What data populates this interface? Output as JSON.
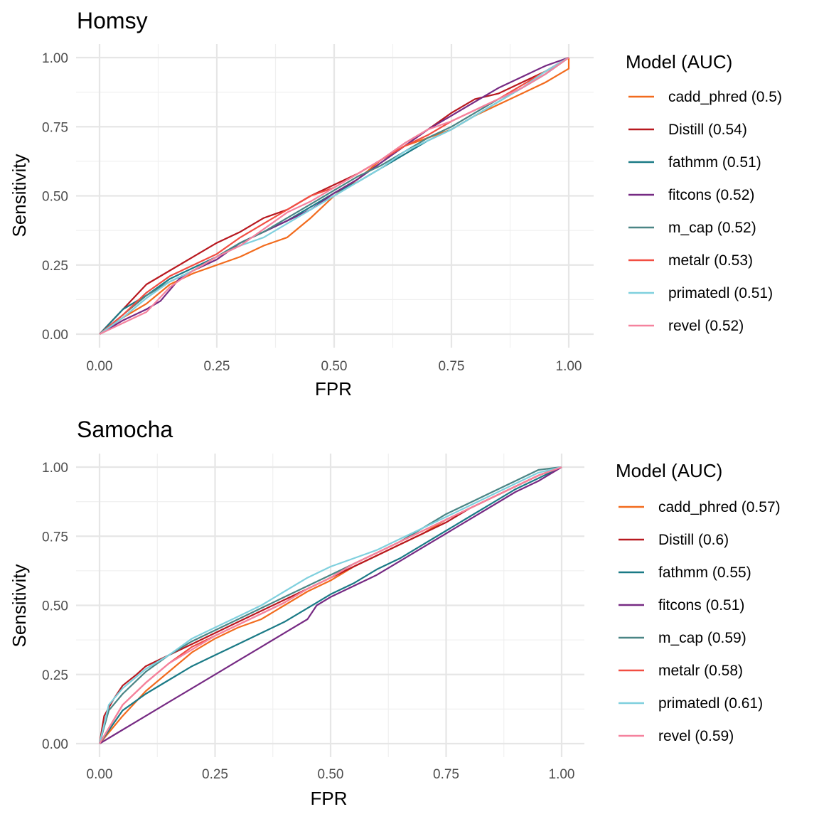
{
  "chart_data": [
    {
      "type": "line",
      "title": "Homsy",
      "xlabel": "FPR",
      "ylabel": "Sensitivity",
      "xlim": [
        0,
        1
      ],
      "ylim": [
        0,
        1
      ],
      "xticks": [
        "0.00",
        "0.25",
        "0.50",
        "0.75",
        "1.00"
      ],
      "yticks": [
        "0.00",
        "0.25",
        "0.50",
        "0.75",
        "1.00"
      ],
      "grid": true,
      "legend": {
        "title": "Model (AUC)",
        "position": "right"
      },
      "series": [
        {
          "name": "cadd_phred (0.5)",
          "color": "#F26B1D",
          "x": [
            0,
            0.05,
            0.1,
            0.15,
            0.2,
            0.3,
            0.35,
            0.4,
            0.45,
            0.5,
            0.55,
            0.6,
            0.65,
            0.7,
            0.75,
            0.8,
            0.85,
            0.9,
            0.95,
            0.98,
            1.0,
            1.0
          ],
          "y": [
            0,
            0.06,
            0.11,
            0.18,
            0.22,
            0.28,
            0.32,
            0.35,
            0.42,
            0.5,
            0.56,
            0.63,
            0.68,
            0.71,
            0.74,
            0.79,
            0.83,
            0.87,
            0.91,
            0.94,
            0.96,
            1.0
          ]
        },
        {
          "name": "Distill (0.54)",
          "color": "#B8181F",
          "x": [
            0,
            0.05,
            0.1,
            0.15,
            0.2,
            0.25,
            0.3,
            0.35,
            0.4,
            0.45,
            0.5,
            0.55,
            0.6,
            0.65,
            0.7,
            0.75,
            0.8,
            0.85,
            0.9,
            0.95,
            1.0
          ],
          "y": [
            0,
            0.09,
            0.18,
            0.23,
            0.28,
            0.33,
            0.37,
            0.42,
            0.45,
            0.5,
            0.54,
            0.58,
            0.63,
            0.69,
            0.74,
            0.8,
            0.85,
            0.87,
            0.91,
            0.95,
            1.0
          ]
        },
        {
          "name": "fathmm (0.51)",
          "color": "#1A7A86",
          "x": [
            0,
            0.05,
            0.1,
            0.15,
            0.2,
            0.25,
            0.3,
            0.35,
            0.4,
            0.45,
            0.5,
            0.55,
            0.6,
            0.65,
            0.7,
            0.75,
            0.8,
            0.85,
            0.9,
            0.95,
            1.0
          ],
          "y": [
            0,
            0.09,
            0.14,
            0.2,
            0.24,
            0.28,
            0.33,
            0.37,
            0.41,
            0.46,
            0.51,
            0.55,
            0.6,
            0.65,
            0.7,
            0.74,
            0.79,
            0.84,
            0.89,
            0.94,
            1.0
          ]
        },
        {
          "name": "fitcons (0.52)",
          "color": "#762A83",
          "x": [
            0,
            0.05,
            0.1,
            0.13,
            0.17,
            0.2,
            0.25,
            0.3,
            0.35,
            0.4,
            0.45,
            0.5,
            0.55,
            0.6,
            0.65,
            0.7,
            0.75,
            0.8,
            0.85,
            0.9,
            0.95,
            1.0
          ],
          "y": [
            0,
            0.05,
            0.09,
            0.12,
            0.2,
            0.23,
            0.27,
            0.33,
            0.37,
            0.41,
            0.45,
            0.51,
            0.56,
            0.62,
            0.68,
            0.74,
            0.79,
            0.84,
            0.89,
            0.93,
            0.97,
            1.0
          ]
        },
        {
          "name": "m_cap (0.52)",
          "color": "#4A8585",
          "x": [
            0,
            0.05,
            0.1,
            0.15,
            0.2,
            0.25,
            0.3,
            0.35,
            0.4,
            0.45,
            0.5,
            0.55,
            0.6,
            0.65,
            0.7,
            0.75,
            0.8,
            0.85,
            0.9,
            0.95,
            1.0
          ],
          "y": [
            0,
            0.07,
            0.14,
            0.19,
            0.23,
            0.28,
            0.33,
            0.37,
            0.42,
            0.47,
            0.52,
            0.57,
            0.61,
            0.66,
            0.71,
            0.75,
            0.8,
            0.85,
            0.89,
            0.94,
            1.0
          ]
        },
        {
          "name": "metalr (0.53)",
          "color": "#F24E42",
          "x": [
            0,
            0.05,
            0.1,
            0.15,
            0.2,
            0.25,
            0.3,
            0.35,
            0.4,
            0.45,
            0.5,
            0.55,
            0.6,
            0.65,
            0.7,
            0.75,
            0.8,
            0.85,
            0.9,
            0.95,
            1.0
          ],
          "y": [
            0,
            0.07,
            0.15,
            0.21,
            0.25,
            0.29,
            0.35,
            0.4,
            0.45,
            0.5,
            0.53,
            0.58,
            0.63,
            0.68,
            0.72,
            0.77,
            0.81,
            0.85,
            0.9,
            0.95,
            1.0
          ]
        },
        {
          "name": "primatedl (0.51)",
          "color": "#7FD0DE",
          "x": [
            0,
            0.05,
            0.1,
            0.15,
            0.2,
            0.25,
            0.3,
            0.35,
            0.4,
            0.45,
            0.5,
            0.55,
            0.6,
            0.65,
            0.7,
            0.75,
            0.8,
            0.85,
            0.9,
            0.95,
            1.0
          ],
          "y": [
            0,
            0.06,
            0.13,
            0.19,
            0.23,
            0.28,
            0.32,
            0.35,
            0.4,
            0.45,
            0.5,
            0.55,
            0.6,
            0.66,
            0.7,
            0.74,
            0.79,
            0.84,
            0.89,
            0.95,
            1.0
          ]
        },
        {
          "name": "revel (0.52)",
          "color": "#F5829E",
          "x": [
            0,
            0.05,
            0.1,
            0.15,
            0.2,
            0.25,
            0.3,
            0.35,
            0.4,
            0.45,
            0.5,
            0.55,
            0.6,
            0.65,
            0.7,
            0.75,
            0.8,
            0.85,
            0.9,
            0.95,
            1.0
          ],
          "y": [
            0,
            0.04,
            0.08,
            0.17,
            0.23,
            0.28,
            0.32,
            0.38,
            0.44,
            0.48,
            0.53,
            0.58,
            0.63,
            0.69,
            0.74,
            0.77,
            0.81,
            0.85,
            0.89,
            0.94,
            1.0
          ]
        }
      ]
    },
    {
      "type": "line",
      "title": "Samocha",
      "xlabel": "FPR",
      "ylabel": "Sensitivity",
      "xlim": [
        0,
        1
      ],
      "ylim": [
        0,
        1
      ],
      "xticks": [
        "0.00",
        "0.25",
        "0.50",
        "0.75",
        "1.00"
      ],
      "yticks": [
        "0.00",
        "0.25",
        "0.50",
        "0.75",
        "1.00"
      ],
      "grid": true,
      "legend": {
        "title": "Model (AUC)",
        "position": "right"
      },
      "series": [
        {
          "name": "cadd_phred (0.57)",
          "color": "#F26B1D",
          "x": [
            0,
            0.05,
            0.1,
            0.15,
            0.2,
            0.25,
            0.3,
            0.35,
            0.4,
            0.45,
            0.5,
            0.55,
            0.6,
            0.65,
            0.7,
            0.75,
            0.8,
            0.85,
            0.9,
            0.95,
            1.0
          ],
          "y": [
            0,
            0.1,
            0.19,
            0.26,
            0.33,
            0.38,
            0.42,
            0.45,
            0.5,
            0.55,
            0.59,
            0.64,
            0.68,
            0.72,
            0.76,
            0.81,
            0.85,
            0.89,
            0.93,
            0.97,
            1.0
          ]
        },
        {
          "name": "Distill (0.6)",
          "color": "#B8181F",
          "x": [
            0,
            0.01,
            0.03,
            0.05,
            0.08,
            0.1,
            0.15,
            0.2,
            0.25,
            0.3,
            0.35,
            0.4,
            0.45,
            0.5,
            0.55,
            0.6,
            0.65,
            0.7,
            0.75,
            0.8,
            0.85,
            0.9,
            0.95,
            1.0
          ],
          "y": [
            0,
            0.1,
            0.16,
            0.21,
            0.25,
            0.28,
            0.32,
            0.36,
            0.4,
            0.44,
            0.48,
            0.52,
            0.56,
            0.6,
            0.64,
            0.68,
            0.72,
            0.76,
            0.8,
            0.85,
            0.89,
            0.93,
            0.97,
            1.0
          ]
        },
        {
          "name": "fathmm (0.55)",
          "color": "#1A7A86",
          "x": [
            0,
            0.05,
            0.1,
            0.15,
            0.2,
            0.25,
            0.3,
            0.35,
            0.4,
            0.45,
            0.5,
            0.55,
            0.6,
            0.65,
            0.7,
            0.75,
            0.8,
            0.85,
            0.9,
            0.95,
            1.0
          ],
          "y": [
            0,
            0.12,
            0.18,
            0.23,
            0.28,
            0.32,
            0.36,
            0.4,
            0.44,
            0.49,
            0.54,
            0.58,
            0.63,
            0.67,
            0.72,
            0.77,
            0.82,
            0.87,
            0.92,
            0.96,
            1.0
          ]
        },
        {
          "name": "fitcons (0.51)",
          "color": "#762A83",
          "x": [
            0,
            0.05,
            0.1,
            0.15,
            0.2,
            0.25,
            0.3,
            0.35,
            0.4,
            0.45,
            0.47,
            0.5,
            0.55,
            0.6,
            0.65,
            0.7,
            0.75,
            0.8,
            0.85,
            0.9,
            0.95,
            1.0
          ],
          "y": [
            0,
            0.05,
            0.1,
            0.15,
            0.2,
            0.25,
            0.3,
            0.35,
            0.4,
            0.45,
            0.5,
            0.53,
            0.57,
            0.61,
            0.66,
            0.71,
            0.76,
            0.81,
            0.86,
            0.91,
            0.95,
            1.0
          ]
        },
        {
          "name": "m_cap (0.59)",
          "color": "#4A8585",
          "x": [
            0,
            0.02,
            0.05,
            0.1,
            0.15,
            0.2,
            0.25,
            0.3,
            0.35,
            0.4,
            0.45,
            0.5,
            0.55,
            0.6,
            0.65,
            0.7,
            0.75,
            0.8,
            0.85,
            0.9,
            0.95,
            1.0
          ],
          "y": [
            0,
            0.12,
            0.18,
            0.26,
            0.32,
            0.37,
            0.41,
            0.45,
            0.49,
            0.53,
            0.57,
            0.61,
            0.65,
            0.69,
            0.73,
            0.78,
            0.83,
            0.87,
            0.91,
            0.95,
            0.99,
            1.0
          ]
        },
        {
          "name": "metalr (0.58)",
          "color": "#F24E42",
          "x": [
            0,
            0.05,
            0.1,
            0.15,
            0.2,
            0.25,
            0.3,
            0.35,
            0.4,
            0.45,
            0.5,
            0.55,
            0.6,
            0.65,
            0.7,
            0.75,
            0.8,
            0.85,
            0.9,
            0.95,
            1.0
          ],
          "y": [
            0,
            0.14,
            0.22,
            0.29,
            0.35,
            0.39,
            0.43,
            0.47,
            0.51,
            0.56,
            0.6,
            0.65,
            0.69,
            0.73,
            0.77,
            0.81,
            0.85,
            0.89,
            0.93,
            0.97,
            1.0
          ]
        },
        {
          "name": "primatedl (0.61)",
          "color": "#7FD0DE",
          "x": [
            0,
            0.02,
            0.05,
            0.1,
            0.15,
            0.2,
            0.25,
            0.3,
            0.35,
            0.4,
            0.45,
            0.5,
            0.55,
            0.6,
            0.65,
            0.7,
            0.75,
            0.8,
            0.85,
            0.9,
            0.95,
            1.0
          ],
          "y": [
            0,
            0.14,
            0.2,
            0.27,
            0.32,
            0.38,
            0.42,
            0.46,
            0.5,
            0.55,
            0.6,
            0.64,
            0.67,
            0.7,
            0.74,
            0.78,
            0.82,
            0.86,
            0.9,
            0.94,
            0.98,
            1.0
          ]
        },
        {
          "name": "revel (0.59)",
          "color": "#F5829E",
          "x": [
            0,
            0.05,
            0.1,
            0.15,
            0.2,
            0.25,
            0.3,
            0.35,
            0.4,
            0.45,
            0.5,
            0.55,
            0.6,
            0.65,
            0.7,
            0.75,
            0.8,
            0.85,
            0.9,
            0.95,
            1.0
          ],
          "y": [
            0,
            0.14,
            0.22,
            0.29,
            0.34,
            0.39,
            0.43,
            0.47,
            0.51,
            0.56,
            0.6,
            0.65,
            0.69,
            0.73,
            0.77,
            0.81,
            0.85,
            0.89,
            0.93,
            0.97,
            1.0
          ]
        }
      ]
    }
  ]
}
